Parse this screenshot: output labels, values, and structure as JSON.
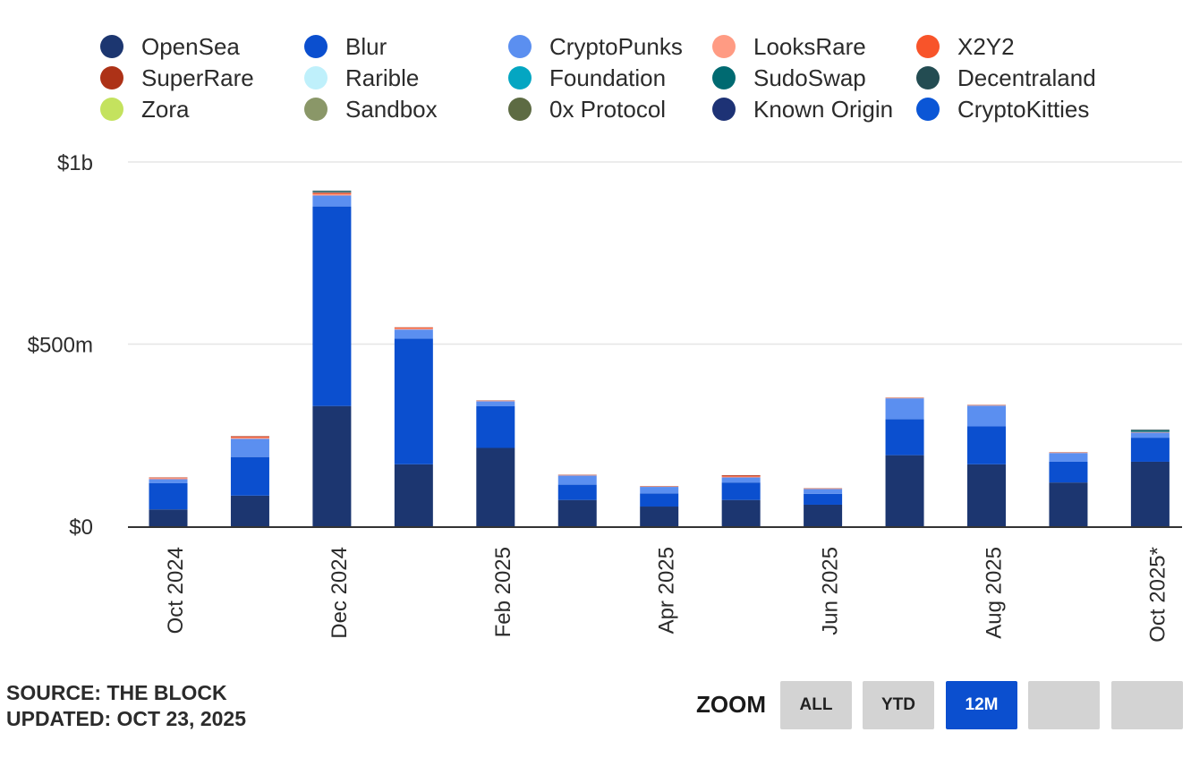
{
  "chart_data": {
    "type": "bar",
    "stacked": true,
    "title": "",
    "xlabel": "",
    "ylabel": "",
    "ylim": [
      0,
      1000000000
    ],
    "yticks": [
      {
        "value": 0,
        "label": "$0"
      },
      {
        "value": 500000000,
        "label": "$500m"
      },
      {
        "value": 1000000000,
        "label": "$1b"
      }
    ],
    "grid": true,
    "legend_position": "top",
    "categories": [
      "Oct 2024",
      "Nov 2024",
      "Dec 2024",
      "Jan 2025",
      "Feb 2025",
      "Mar 2025",
      "Apr 2025",
      "May 2025",
      "Jun 2025",
      "Jul 2025",
      "Aug 2025",
      "Sep 2025",
      "Oct 2025*"
    ],
    "xtick_labels": [
      {
        "index": 0,
        "label": "Oct 2024"
      },
      {
        "index": 2,
        "label": "Dec 2024"
      },
      {
        "index": 4,
        "label": "Feb 2025"
      },
      {
        "index": 6,
        "label": "Apr 2025"
      },
      {
        "index": 8,
        "label": "Jun 2025"
      },
      {
        "index": 10,
        "label": "Aug 2025"
      },
      {
        "index": 12,
        "label": "Oct 2025*"
      }
    ],
    "series": [
      {
        "name": "OpenSea",
        "color": "#1c3670",
        "values": [
          46000000,
          84000000,
          330000000,
          170000000,
          215000000,
          72000000,
          54000000,
          72000000,
          59000000,
          195000000,
          170000000,
          120000000,
          177000000
        ]
      },
      {
        "name": "Blur",
        "color": "#0b4fcf",
        "values": [
          72000000,
          106000000,
          548000000,
          345000000,
          115000000,
          42000000,
          36000000,
          48000000,
          30000000,
          99000000,
          104000000,
          57000000,
          66000000
        ]
      },
      {
        "name": "CryptoPunks",
        "color": "#5b8ff0",
        "values": [
          11000000,
          50000000,
          30000000,
          25000000,
          13000000,
          25000000,
          18000000,
          14000000,
          13000000,
          57000000,
          57000000,
          24000000,
          14000000
        ]
      },
      {
        "name": "LooksRare",
        "color": "#ff9b83",
        "values": [
          3000000,
          3000000,
          4000000,
          3000000,
          1000000,
          1000000,
          1000000,
          2000000,
          1000000,
          1000000,
          1000000,
          1000000,
          1000000
        ]
      },
      {
        "name": "X2Y2",
        "color": "#f8542a",
        "values": [
          1000000,
          2000000,
          2000000,
          2000000,
          0,
          0,
          0,
          2000000,
          0,
          0,
          0,
          0,
          0
        ]
      },
      {
        "name": "SuperRare",
        "color": "#ad3217",
        "values": [
          1000000,
          2000000,
          2000000,
          1000000,
          1000000,
          1000000,
          1000000,
          2000000,
          1000000,
          1000000,
          1000000,
          1000000,
          1000000
        ]
      },
      {
        "name": "Rarible",
        "color": "#bff0fb",
        "values": [
          0,
          0,
          1000000,
          0,
          0,
          0,
          0,
          0,
          0,
          0,
          0,
          0,
          0
        ]
      },
      {
        "name": "Foundation",
        "color": "#04a6c2",
        "values": [
          0,
          0,
          0,
          0,
          0,
          0,
          0,
          0,
          0,
          0,
          0,
          0,
          2000000
        ]
      },
      {
        "name": "SudoSwap",
        "color": "#006a71",
        "values": [
          0,
          0,
          1000000,
          0,
          0,
          0,
          0,
          0,
          0,
          0,
          0,
          0,
          2000000
        ]
      },
      {
        "name": "Decentraland",
        "color": "#234c52",
        "values": [
          0,
          0,
          3000000,
          0,
          0,
          0,
          0,
          0,
          0,
          0,
          0,
          0,
          2000000
        ]
      },
      {
        "name": "Zora",
        "color": "#c4e25e",
        "values": [
          0,
          0,
          0,
          0,
          0,
          0,
          0,
          0,
          0,
          0,
          0,
          0,
          0
        ]
      },
      {
        "name": "Sandbox",
        "color": "#8a9768",
        "values": [
          0,
          0,
          0,
          0,
          0,
          0,
          0,
          0,
          0,
          0,
          0,
          0,
          0
        ]
      },
      {
        "name": "0x Protocol",
        "color": "#5d6b43",
        "values": [
          0,
          0,
          0,
          0,
          0,
          0,
          0,
          0,
          0,
          0,
          0,
          0,
          0
        ]
      },
      {
        "name": "Known Origin",
        "color": "#1d3275",
        "values": [
          0,
          0,
          0,
          0,
          0,
          0,
          0,
          0,
          0,
          0,
          0,
          0,
          0
        ]
      },
      {
        "name": "CryptoKitties",
        "color": "#0b56d6",
        "values": [
          0,
          0,
          0,
          0,
          0,
          0,
          0,
          0,
          0,
          0,
          0,
          0,
          0
        ]
      }
    ]
  },
  "footer": {
    "source": "SOURCE: THE BLOCK",
    "updated": "UPDATED: OCT 23, 2025"
  },
  "zoom": {
    "label": "ZOOM",
    "buttons": [
      {
        "label": "ALL",
        "active": false
      },
      {
        "label": "YTD",
        "active": false
      },
      {
        "label": "12M",
        "active": true
      },
      {
        "label": "",
        "active": false
      },
      {
        "label": "",
        "active": false
      }
    ]
  }
}
